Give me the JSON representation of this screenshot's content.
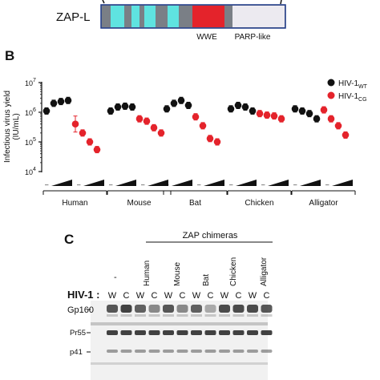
{
  "panel_a": {
    "protein_label": "ZAP-L",
    "domain_labels": [
      "WWE",
      "PARP-like"
    ],
    "colors": {
      "cyan": "#5fe3e0",
      "gray": "#7a7f86",
      "red": "#e4232b",
      "light": "#eceaf0",
      "border": "#1e3a8a"
    }
  },
  "panel_b": {
    "letter": "B",
    "groups": [
      "Human",
      "Mouse",
      "Bat",
      "Chicken",
      "Alligator"
    ],
    "dose_marker": "–"
  },
  "panel_c": {
    "letter": "C",
    "header": "ZAP chimeras",
    "dash_label": "-",
    "chimera_labels": [
      "Human",
      "Mouse",
      "Bat",
      "Chicken",
      "Alligator"
    ],
    "hiv_label": "HIV-1 :",
    "lane_letters": [
      "W",
      "C",
      "W",
      "C",
      "W",
      "C",
      "W",
      "C",
      "W",
      "C",
      "W",
      "C"
    ],
    "band_labels": [
      "Gp160",
      "Pr55",
      "p41"
    ]
  },
  "chart_data": {
    "type": "scatter",
    "ylabel": "Infectious virus yield (IU/mL)",
    "yscale": "log",
    "ylim": [
      10000,
      10000000
    ],
    "y_ticks": [
      "10^4",
      "10^5",
      "10^6",
      "10^7"
    ],
    "legend_position": "top-right",
    "categories": [
      "Human",
      "Mouse",
      "Bat",
      "Chicken",
      "Alligator"
    ],
    "series": [
      {
        "name": "HIV-1WT",
        "name_main": "HIV-1",
        "name_sub": "WT",
        "color": "#111111",
        "values": [
          [
            1100000,
            2000000,
            2300000,
            2500000
          ],
          [
            1100000,
            1500000,
            1600000,
            1500000
          ],
          [
            1300000,
            2000000,
            2500000,
            1700000
          ],
          [
            1300000,
            1700000,
            1500000,
            1100000
          ],
          [
            1300000,
            1100000,
            900000,
            600000
          ]
        ]
      },
      {
        "name": "HIV-1CG",
        "name_main": "HIV-1",
        "name_sub": "CG",
        "color": "#e4232b",
        "values": [
          [
            400000,
            200000,
            100000,
            55000
          ],
          [
            600000,
            500000,
            300000,
            200000
          ],
          [
            700000,
            350000,
            130000,
            100000
          ],
          [
            900000,
            800000,
            750000,
            600000
          ],
          [
            1200000,
            600000,
            350000,
            170000
          ]
        ]
      }
    ]
  }
}
